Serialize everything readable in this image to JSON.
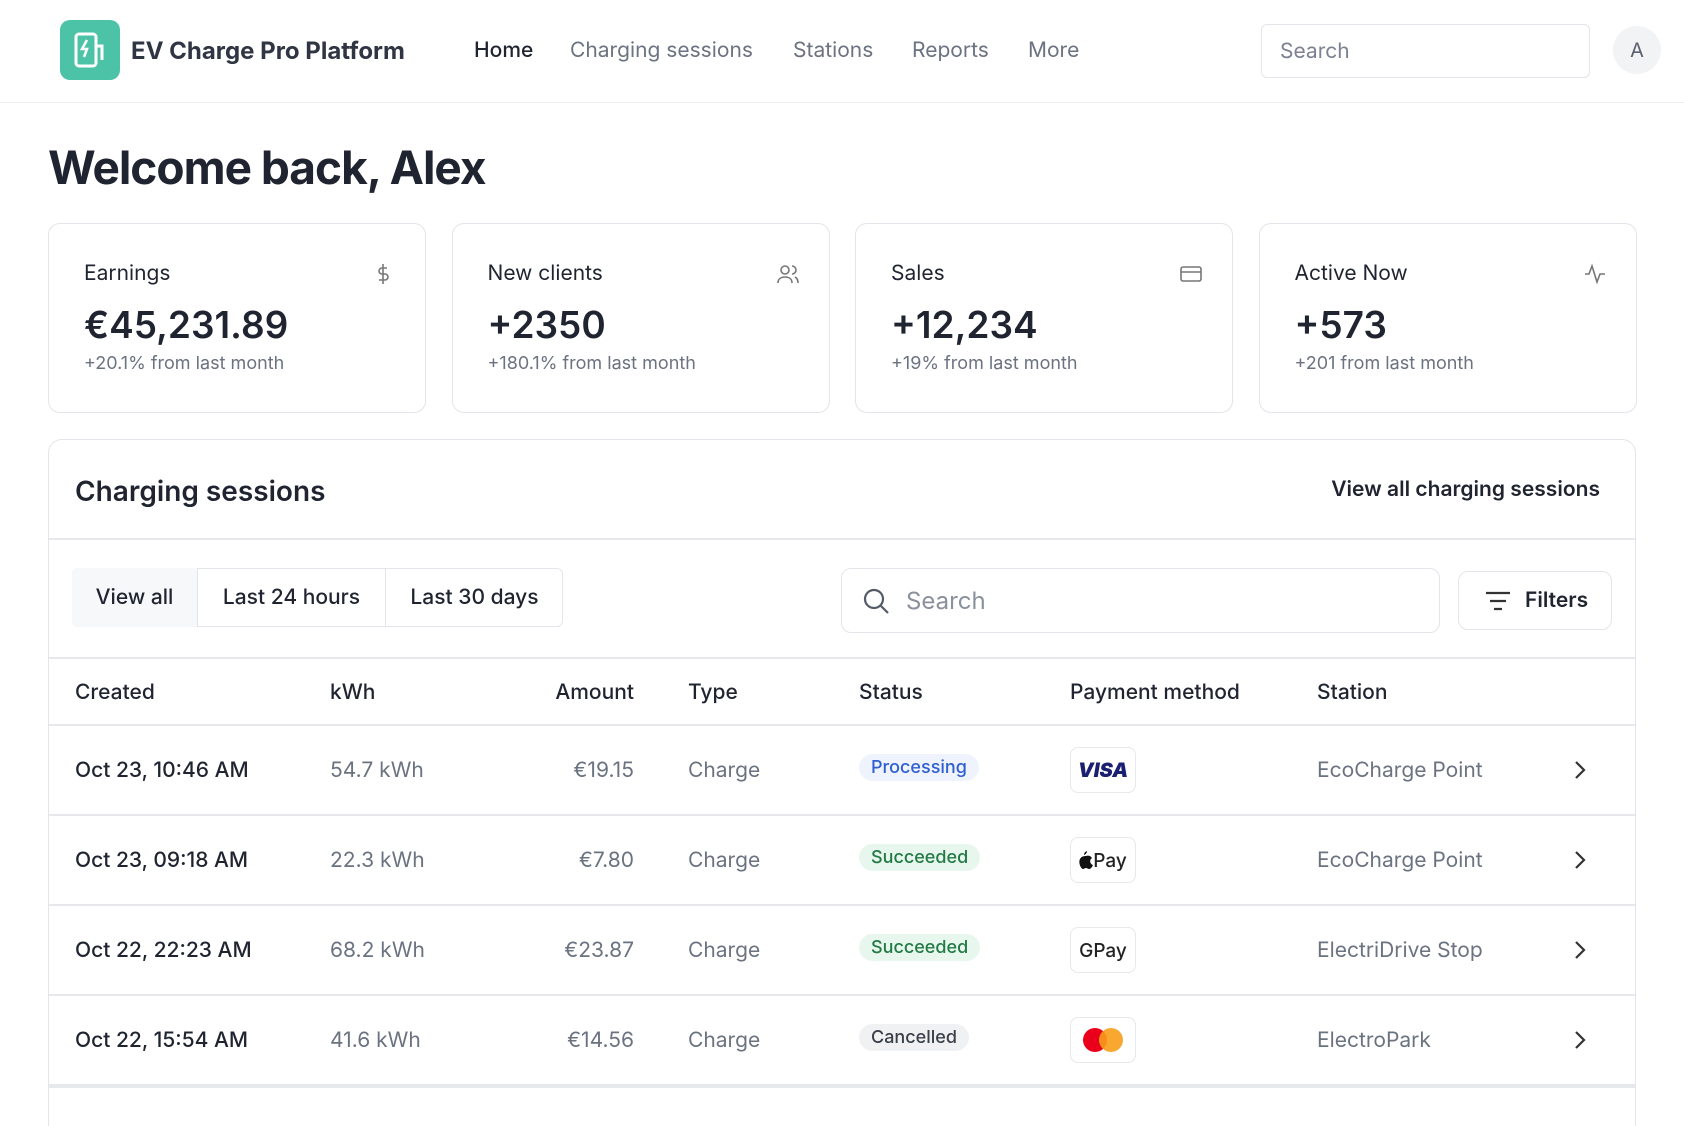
{
  "header": {
    "brand": "EV Charge Pro Platform",
    "nav": [
      "Home",
      "Charging sessions",
      "Stations",
      "Reports",
      "More"
    ],
    "search_placeholder": "Search",
    "avatar": "A"
  },
  "welcome": "Welcome back, Alex",
  "stats": [
    {
      "label": "Earnings",
      "value": "€45,231.89",
      "change": "+20.1% from last month"
    },
    {
      "label": "New clients",
      "value": "+2350",
      "change": "+180.1% from last month"
    },
    {
      "label": "Sales",
      "value": "+12,234",
      "change": "+19% from last month"
    },
    {
      "label": "Active Now",
      "value": "+573",
      "change": "+201 from last month"
    }
  ],
  "sessions": {
    "title": "Charging sessions",
    "view_all_link": "View all charging sessions",
    "tabs": [
      "View all",
      "Last 24 hours",
      "Last 30 days"
    ],
    "search_placeholder": "Search",
    "filters": "Filters",
    "table": {
      "columns": [
        "Created",
        "kWh",
        "Amount",
        "Type",
        "Status",
        "Payment method",
        "Station"
      ],
      "rows": [
        [
          "Oct 23, 10:46 AM",
          "54.7 kWh",
          "€19.15",
          "Charge",
          "Processing",
          "VISA",
          "EcoCharge Point"
        ],
        [
          "Oct 23, 09:18 AM",
          "22.3 kWh",
          "€7.80",
          "Charge",
          "Succeeded",
          "Pay",
          "EcoCharge Point"
        ],
        [
          "Oct 22, 22:23 AM",
          "68.2 kWh",
          "€23.87",
          "Charge",
          "Succeeded",
          "GPay",
          "ElectriDrive Stop"
        ],
        [
          "Oct 22, 15:54 AM",
          "41.6 kWh",
          "€14.56",
          "Charge",
          "Cancelled",
          null,
          "ElectroPark"
        ]
      ]
    }
  }
}
